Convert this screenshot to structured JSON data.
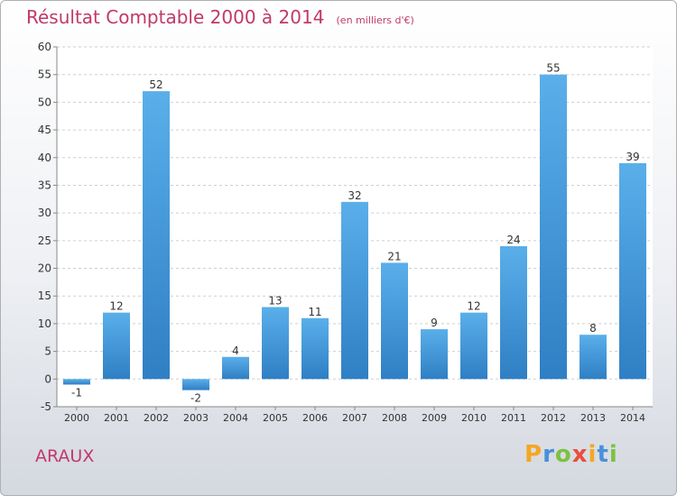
{
  "chart_data": {
    "type": "bar",
    "title": "Résultat Comptable 2000 à 2014",
    "subtitle": "(en milliers d'€)",
    "categories": [
      "2000",
      "2001",
      "2002",
      "2003",
      "2004",
      "2005",
      "2006",
      "2007",
      "2008",
      "2009",
      "2010",
      "2011",
      "2012",
      "2013",
      "2014"
    ],
    "values": [
      -1,
      12,
      52,
      -2,
      4,
      13,
      11,
      32,
      21,
      9,
      12,
      24,
      55,
      8,
      39
    ],
    "ylim": [
      -5,
      60
    ],
    "yticks": [
      -5,
      0,
      5,
      10,
      15,
      20,
      25,
      30,
      35,
      40,
      45,
      50,
      55,
      60
    ],
    "grid": true,
    "bar_color": "#4ea3e2"
  },
  "commune": "ARAUX",
  "logo": {
    "letters": [
      "P",
      "r",
      "o",
      "x",
      "i",
      "t",
      "i"
    ],
    "colors": [
      "#f5a623",
      "#4a90d9",
      "#7cc242",
      "#e94e3c",
      "#f5a623",
      "#4a90d9",
      "#7cc242"
    ]
  }
}
